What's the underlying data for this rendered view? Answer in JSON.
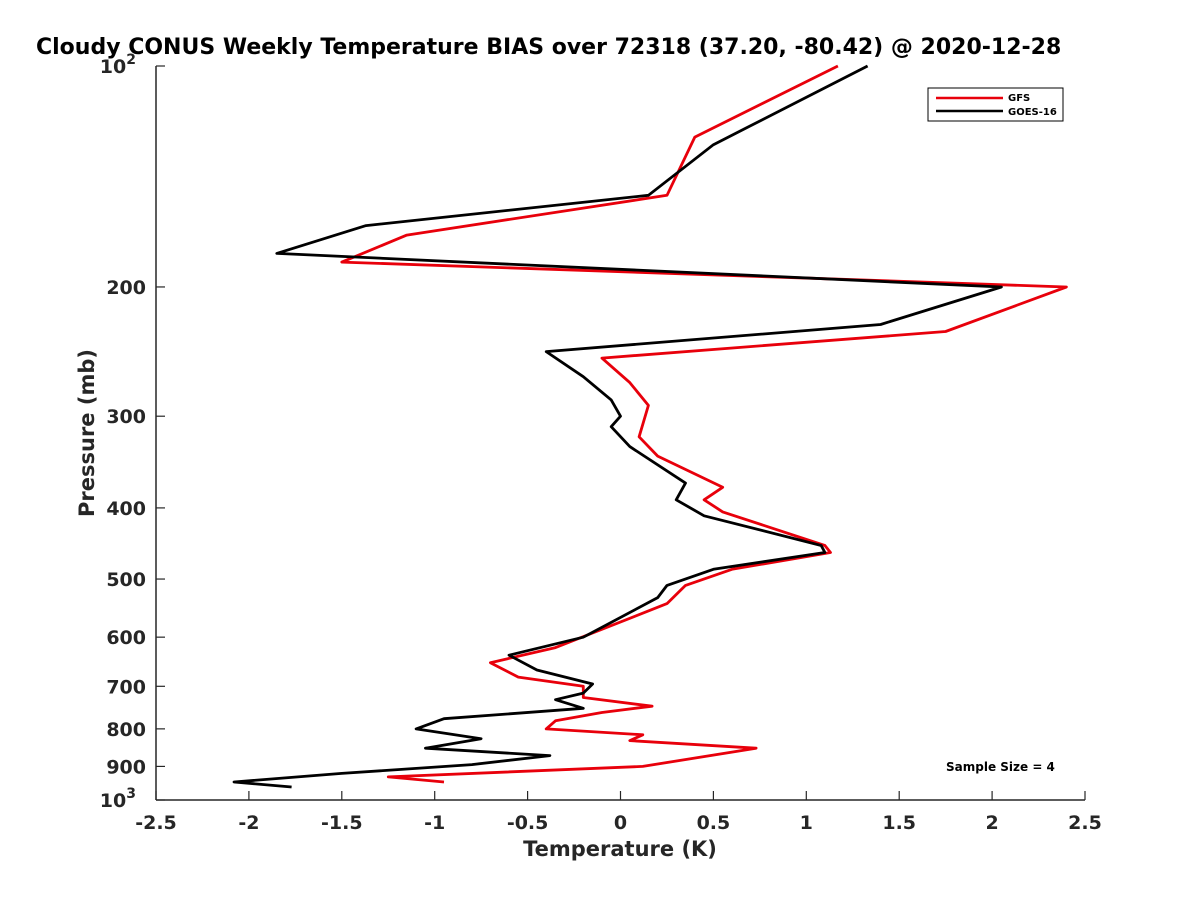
{
  "chart_data": {
    "type": "line",
    "title": "Cloudy CONUS Weekly Temperature BIAS over 72318 (37.20, -80.42) @ 2020-12-28",
    "xlabel": "Temperature (K)",
    "ylabel": "Pressure (mb)",
    "xlim": [
      -2.5,
      2.5
    ],
    "ylim": [
      100,
      1000
    ],
    "yscale": "log",
    "y_reversed": true,
    "grid": false,
    "legend_position": "top-right",
    "x_ticks": [
      "-2.5",
      "-2",
      "-1.5",
      "-1",
      "-0.5",
      "0",
      "0.5",
      "1",
      "1.5",
      "2",
      "2.5"
    ],
    "x_tick_values": [
      -2.5,
      -2,
      -1.5,
      -1,
      -0.5,
      0,
      0.5,
      1,
      1.5,
      2,
      2.5
    ],
    "y_ticks": [
      {
        "value": 100,
        "label": "10",
        "exp": "2"
      },
      {
        "value": 200,
        "label": "200"
      },
      {
        "value": 300,
        "label": "300"
      },
      {
        "value": 400,
        "label": "400"
      },
      {
        "value": 500,
        "label": "500"
      },
      {
        "value": 600,
        "label": "600"
      },
      {
        "value": 700,
        "label": "700"
      },
      {
        "value": 800,
        "label": "800"
      },
      {
        "value": 900,
        "label": "900"
      },
      {
        "value": 1000,
        "label": "10",
        "exp": "3"
      }
    ],
    "annotation": "Sample Size = 4",
    "series": [
      {
        "name": "GFS",
        "color": "#e8000b",
        "points": [
          [
            1.17,
            100
          ],
          [
            0.4,
            125
          ],
          [
            0.25,
            150
          ],
          [
            -1.15,
            170
          ],
          [
            -1.5,
            185
          ],
          [
            2.4,
            200
          ],
          [
            1.75,
            230
          ],
          [
            -0.1,
            250
          ],
          [
            0.05,
            270
          ],
          [
            0.15,
            290
          ],
          [
            0.1,
            320
          ],
          [
            0.2,
            340
          ],
          [
            0.55,
            375
          ],
          [
            0.45,
            390
          ],
          [
            0.55,
            405
          ],
          [
            1.1,
            450
          ],
          [
            1.13,
            460
          ],
          [
            0.6,
            485
          ],
          [
            0.35,
            510
          ],
          [
            0.25,
            540
          ],
          [
            -0.35,
            620
          ],
          [
            -0.7,
            650
          ],
          [
            -0.55,
            680
          ],
          [
            -0.2,
            700
          ],
          [
            -0.2,
            725
          ],
          [
            0.17,
            745
          ],
          [
            -0.1,
            760
          ],
          [
            -0.35,
            780
          ],
          [
            -0.4,
            800
          ],
          [
            0.12,
            815
          ],
          [
            0.05,
            830
          ],
          [
            0.73,
            850
          ],
          [
            0.12,
            900
          ],
          [
            -1.25,
            930
          ],
          [
            -0.95,
            945
          ]
        ]
      },
      {
        "name": "GOES-16",
        "color": "#000000",
        "points": [
          [
            1.33,
            100
          ],
          [
            0.5,
            128
          ],
          [
            0.15,
            150
          ],
          [
            -1.37,
            165
          ],
          [
            -1.85,
            180
          ],
          [
            2.05,
            200
          ],
          [
            1.4,
            225
          ],
          [
            -0.4,
            245
          ],
          [
            -0.2,
            265
          ],
          [
            -0.05,
            285
          ],
          [
            0.0,
            300
          ],
          [
            -0.05,
            310
          ],
          [
            0.05,
            330
          ],
          [
            0.35,
            370
          ],
          [
            0.3,
            390
          ],
          [
            0.45,
            410
          ],
          [
            1.08,
            450
          ],
          [
            1.1,
            460
          ],
          [
            0.5,
            485
          ],
          [
            0.25,
            510
          ],
          [
            0.2,
            530
          ],
          [
            -0.2,
            600
          ],
          [
            -0.6,
            635
          ],
          [
            -0.45,
            665
          ],
          [
            -0.15,
            695
          ],
          [
            -0.2,
            715
          ],
          [
            -0.35,
            730
          ],
          [
            -0.2,
            750
          ],
          [
            -0.95,
            775
          ],
          [
            -1.1,
            800
          ],
          [
            -0.75,
            825
          ],
          [
            -1.05,
            850
          ],
          [
            -0.38,
            870
          ],
          [
            -0.8,
            895
          ],
          [
            -1.5,
            920
          ],
          [
            -2.08,
            945
          ],
          [
            -1.77,
            960
          ]
        ]
      }
    ]
  }
}
